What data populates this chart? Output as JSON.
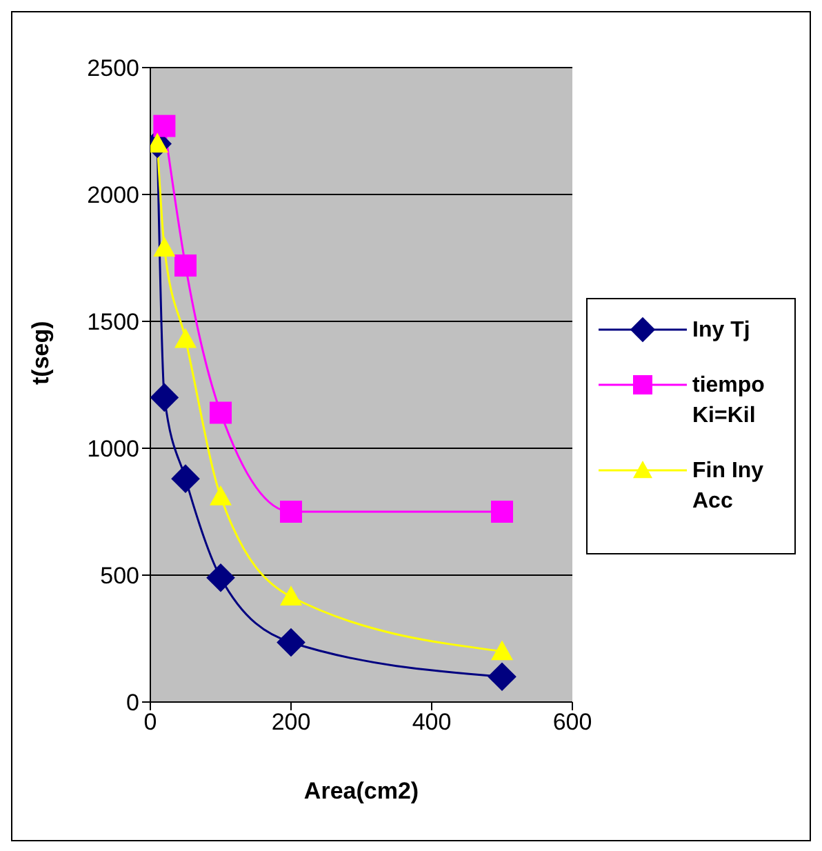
{
  "chart_data": {
    "type": "line",
    "xlabel": "Area(cm2)",
    "ylabel": "t(seg)",
    "xlim": [
      0,
      600
    ],
    "xticks": [
      0,
      200,
      400,
      600
    ],
    "ylim": [
      0,
      2500
    ],
    "yticks": [
      0,
      500,
      1000,
      1500,
      2000,
      2500
    ],
    "grid": "y",
    "legend": "right",
    "line_style": "solid",
    "series": [
      {
        "name": "Iny Tj",
        "color": "#000080",
        "marker": "diamond",
        "x": [
          10,
          20,
          50,
          100,
          200,
          500
        ],
        "values": [
          2200,
          1200,
          880,
          490,
          235,
          100
        ]
      },
      {
        "name": "tiempo Ki=Kil",
        "color": "#ff00ff",
        "marker": "square",
        "x": [
          20,
          50,
          100,
          200,
          500
        ],
        "values": [
          2270,
          1720,
          1140,
          750,
          750
        ]
      },
      {
        "name": "Fin Iny Acc",
        "color": "#ffff00",
        "marker": "triangle",
        "x": [
          10,
          20,
          50,
          100,
          200,
          500
        ],
        "values": [
          2200,
          1790,
          1430,
          810,
          415,
          200
        ]
      }
    ]
  }
}
